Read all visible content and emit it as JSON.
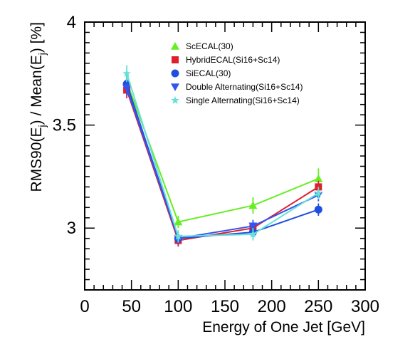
{
  "chart_data": {
    "type": "line",
    "title": "",
    "xlabel": "Energy of One Jet  [GeV]",
    "ylabel": "RMS90(E_j) / Mean(E_j)  [%]",
    "xlim": [
      0,
      300
    ],
    "ylim": [
      2.7,
      4.0
    ],
    "x_ticks": [
      0,
      50,
      100,
      150,
      200,
      250,
      300
    ],
    "y_ticks": [
      3,
      3.5,
      4
    ],
    "x_tick_labels": [
      "0",
      "50",
      "100",
      "150",
      "200",
      "250",
      "300"
    ],
    "y_tick_labels": [
      "3",
      "3.5",
      "4"
    ],
    "grid": false,
    "legend_position": "top-right",
    "series": [
      {
        "name": "ScECAL(30)",
        "color": "#66ee22",
        "marker": "triangle-up",
        "points": [
          {
            "x": 45,
            "y": 3.71,
            "err": 0.04
          },
          {
            "x": 100,
            "y": 3.03,
            "err": 0.03
          },
          {
            "x": 180,
            "y": 3.11,
            "err": 0.04
          },
          {
            "x": 250,
            "y": 3.24,
            "err": 0.05
          }
        ]
      },
      {
        "name": "HybridECAL(Si16+Sc14)",
        "color": "#dd1f2e",
        "marker": "square",
        "points": [
          {
            "x": 45,
            "y": 3.67,
            "err": 0.04
          },
          {
            "x": 100,
            "y": 2.94,
            "err": 0.03
          },
          {
            "x": 180,
            "y": 3.0,
            "err": 0.03
          },
          {
            "x": 250,
            "y": 3.2,
            "err": 0.03
          }
        ]
      },
      {
        "name": "SiECAL(30)",
        "color": "#1f4fdd",
        "marker": "circle",
        "points": [
          {
            "x": 45,
            "y": 3.7,
            "err": 0.04
          },
          {
            "x": 100,
            "y": 2.95,
            "err": 0.03
          },
          {
            "x": 180,
            "y": 2.98,
            "err": 0.03
          },
          {
            "x": 250,
            "y": 3.09,
            "err": 0.03
          }
        ]
      },
      {
        "name": "Double Alternating(Si16+Sc14)",
        "color": "#3355ee",
        "marker": "triangle-down",
        "points": [
          {
            "x": 45,
            "y": 3.68,
            "err": 0.04
          },
          {
            "x": 100,
            "y": 2.95,
            "err": 0.03
          },
          {
            "x": 180,
            "y": 3.01,
            "err": 0.03
          },
          {
            "x": 250,
            "y": 3.16,
            "err": 0.03
          }
        ]
      },
      {
        "name": "Single Alternating(Si16+Sc14)",
        "color": "#66e0d8",
        "marker": "star",
        "points": [
          {
            "x": 45,
            "y": 3.75,
            "err": 0.04
          },
          {
            "x": 100,
            "y": 2.96,
            "err": 0.03
          },
          {
            "x": 180,
            "y": 2.97,
            "err": 0.03
          },
          {
            "x": 250,
            "y": 3.17,
            "err": 0.03
          }
        ]
      }
    ]
  }
}
